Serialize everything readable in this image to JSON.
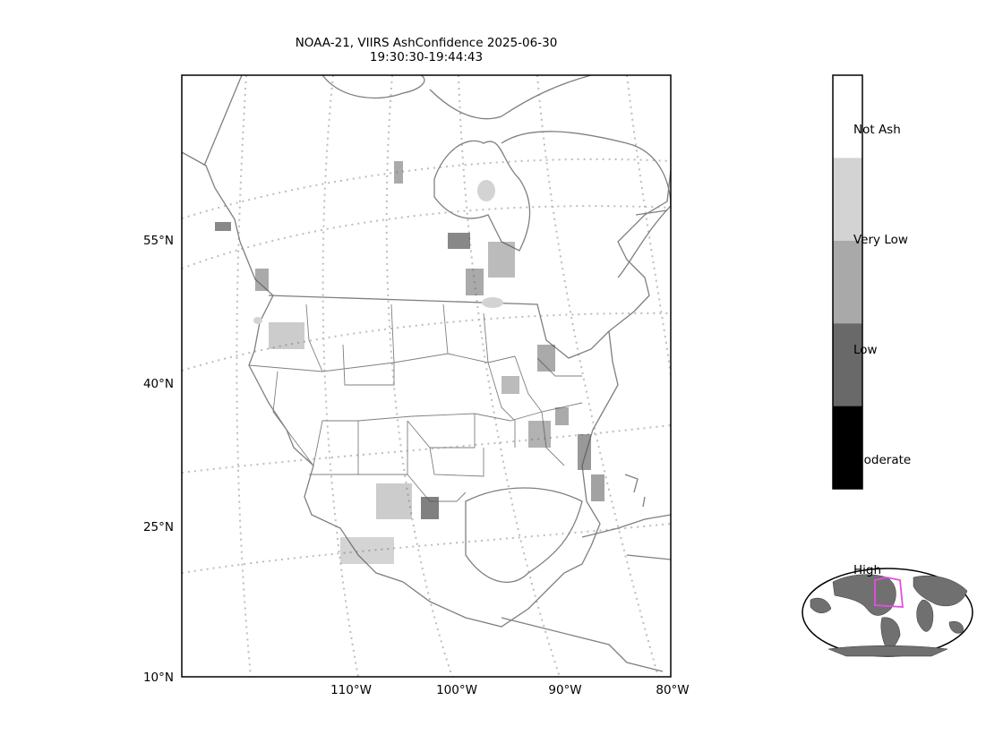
{
  "title": {
    "line1": "NOAA-21, VIIRS AshConfidence 2025-06-30",
    "line2": "19:30:30-19:44:43"
  },
  "lat_labels": [
    "55°N",
    "40°N",
    "25°N",
    "10°N"
  ],
  "lon_labels": [
    "110°W",
    "100°W",
    "90°W",
    "80°W"
  ],
  "colorbar": {
    "categories": [
      {
        "label": "Not Ash",
        "color": "#ffffff"
      },
      {
        "label": "Very Low",
        "color": "#d3d3d3"
      },
      {
        "label": "Low",
        "color": "#a9a9a9"
      },
      {
        "label": "Moderate",
        "color": "#696969"
      },
      {
        "label": "High",
        "color": "#000000"
      }
    ]
  },
  "colors": {
    "coastline": "#7f7f7f",
    "gridline": "#bdbdbd",
    "inset_land": "#707070",
    "inset_extent": "#e64ce6"
  }
}
